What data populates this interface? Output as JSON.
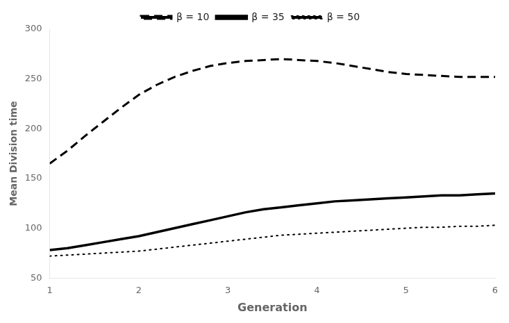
{
  "chart_data": {
    "type": "line",
    "x": [
      1,
      1.2,
      1.4,
      1.6,
      1.8,
      2.0,
      2.2,
      2.4,
      2.6,
      2.8,
      3.0,
      3.2,
      3.4,
      3.6,
      3.8,
      4.0,
      4.2,
      4.4,
      4.6,
      4.8,
      5.0,
      5.2,
      5.4,
      5.6,
      5.8,
      6.0
    ],
    "series": [
      {
        "name": "β = 10",
        "color": "#000000",
        "line_style": "dashed",
        "values": [
          165,
          178,
          193,
          207,
          221,
          234,
          244,
          252,
          258,
          263,
          266,
          268,
          269,
          270,
          269,
          268,
          266,
          263,
          260,
          257,
          255,
          254,
          253,
          252,
          252,
          252
        ]
      },
      {
        "name": "β = 35",
        "color": "#000000",
        "line_style": "solid",
        "values": [
          78,
          80,
          83,
          86,
          89,
          92,
          96,
          100,
          104,
          108,
          112,
          116,
          119,
          121,
          123,
          125,
          127,
          128,
          129,
          130,
          131,
          132,
          133,
          133,
          134,
          135
        ]
      },
      {
        "name": "β = 50",
        "color": "#000000",
        "line_style": "dotted",
        "values": [
          72,
          73,
          74,
          75,
          76,
          77,
          79,
          81,
          83,
          85,
          87,
          89,
          91,
          93,
          94,
          95,
          96,
          97,
          98,
          99,
          100,
          101,
          101,
          102,
          102,
          103
        ]
      }
    ],
    "xlabel": "Generation",
    "ylabel": "Mean Division time",
    "xlim": [
      1,
      6
    ],
    "ylim": [
      50,
      300
    ],
    "xticks": [
      1,
      2,
      3,
      4,
      5,
      6
    ],
    "yticks": [
      50,
      100,
      150,
      200,
      250,
      300
    ],
    "grid": false,
    "legend": "top"
  }
}
